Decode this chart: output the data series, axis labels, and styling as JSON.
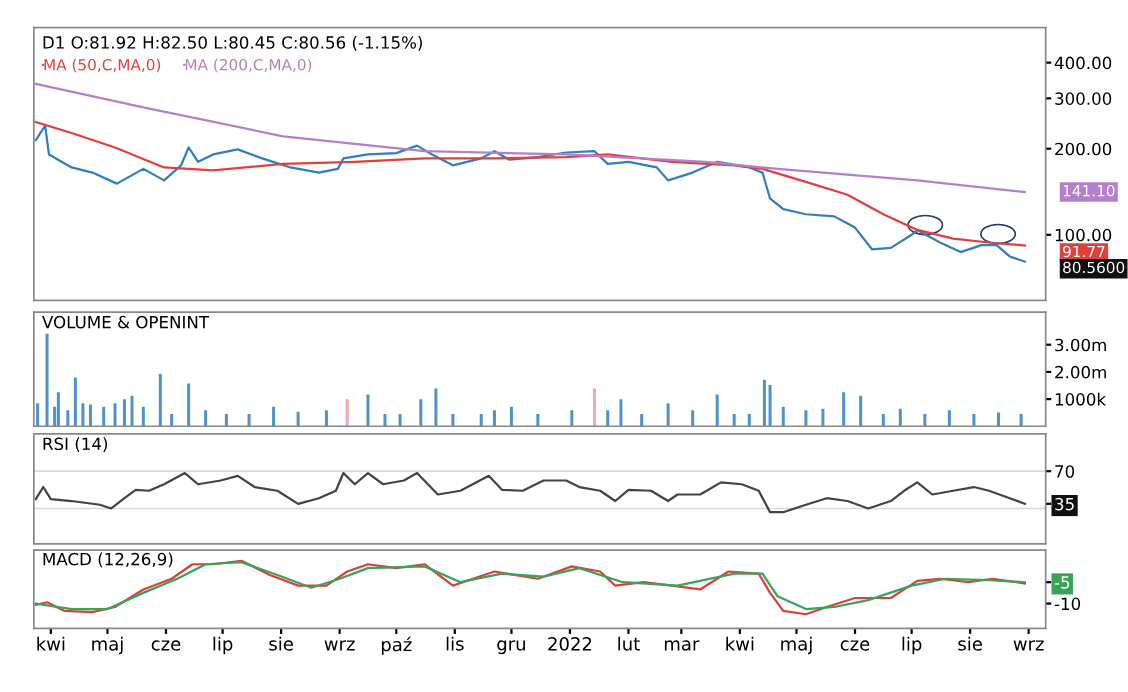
{
  "chart_data": [
    {
      "type": "line",
      "title": "D1 O:81.92 H:82.50 L:80.45 C:80.56 (-1.15%)",
      "log": "y",
      "legend": "top left",
      "tick_labels": "y",
      "xlim": [
        "2021-03-23",
        "2022-09-10"
      ],
      "ylim": [
        59,
        530
      ],
      "yticks": [
        {
          "value": 400,
          "label": "400.00"
        },
        {
          "value": 300,
          "label": "300.00"
        },
        {
          "value": 200,
          "label": "200.00"
        },
        {
          "value": 100,
          "label": "100.00"
        }
      ],
      "series": [
        {
          "color": "#2f7fc1",
          "x": [
            "2021-03-24",
            "2021-03-29",
            "2021-03-31",
            "2021-04-12",
            "2021-04-23",
            "2021-05-06",
            "2021-05-20",
            "2021-05-31",
            "2021-06-09",
            "2021-06-13",
            "2021-06-18",
            "2021-06-26",
            "2021-07-09",
            "2021-07-22",
            "2021-08-06",
            "2021-08-21",
            "2021-08-31",
            "2021-09-03",
            "2021-09-16",
            "2021-10-01",
            "2021-10-12",
            "2021-10-20",
            "2021-10-31",
            "2021-11-15",
            "2021-11-22",
            "2021-11-30",
            "2021-12-15",
            "2021-12-30",
            "2022-01-14",
            "2022-01-21",
            "2022-02-01",
            "2022-02-16",
            "2022-02-22",
            "2022-03-07",
            "2022-03-20",
            "2022-04-06",
            "2022-04-13",
            "2022-04-17",
            "2022-04-24",
            "2022-05-06",
            "2022-05-21",
            "2022-06-01",
            "2022-06-10",
            "2022-06-20",
            "2022-07-01",
            "2022-07-04",
            "2022-07-16",
            "2022-07-27",
            "2022-08-07",
            "2022-08-15",
            "2022-08-22",
            "2022-08-30"
          ],
          "values": [
            214,
            241,
            191,
            172,
            165,
            151,
            170,
            155,
            175,
            202,
            180,
            191,
            199,
            185,
            172,
            165,
            170,
            185,
            191,
            193,
            205,
            191,
            175,
            185,
            196,
            183,
            187,
            194,
            196,
            177,
            180,
            172,
            155,
            165,
            180,
            172,
            165,
            134,
            123,
            118,
            116,
            106,
            89,
            90,
            100,
            104,
            94,
            87,
            92,
            92,
            84,
            80.56
          ]
        },
        {
          "name": "MA (50,C,MA,0)",
          "color": "#e0413c",
          "x": [
            "2021-03-24",
            "2021-04-12",
            "2021-05-05",
            "2021-05-31",
            "2021-06-26",
            "2021-08-02",
            "2021-09-09",
            "2021-10-16",
            "2021-11-22",
            "2021-12-30",
            "2022-01-21",
            "2022-02-24",
            "2022-03-29",
            "2022-04-13",
            "2022-05-09",
            "2022-05-28",
            "2022-06-16",
            "2022-07-04",
            "2022-07-23",
            "2022-08-11",
            "2022-08-30"
          ],
          "values": [
            248,
            227,
            202,
            172,
            168,
            177,
            180,
            185,
            185,
            187,
            191,
            180,
            175,
            170,
            151,
            138,
            118,
            104,
            97,
            94,
            91.77
          ]
        },
        {
          "name": "MA (200,C,MA,0)",
          "color": "#b57fc9",
          "x": [
            "2021-03-24",
            "2021-05-20",
            "2021-08-02",
            "2021-10-16",
            "2021-12-30",
            "2022-03-14",
            "2022-04-21",
            "2022-07-04",
            "2022-08-30"
          ],
          "values": [
            337,
            279,
            221,
            196,
            191,
            180,
            170,
            155,
            141.1
          ]
        }
      ],
      "annotations": [
        {
          "text": "141.10",
          "x": "2022-08-30",
          "y": 141.1
        },
        {
          "text": "91.77",
          "x": "2022-08-30",
          "y": 91.77
        },
        {
          "text": "80.5600",
          "x": "2022-08-30",
          "y": 80.56
        }
      ]
    },
    {
      "type": "bar",
      "title": "VOLUME & OPENINT",
      "tick_labels": "y",
      "xlim": [
        "2021-03-23",
        "2022-09-10"
      ],
      "ylim": [
        0,
        4200000
      ],
      "yticks": [
        {
          "value": 3000000,
          "label": "3.00m"
        },
        {
          "value": 2000000,
          "label": "2.00m"
        },
        {
          "value": 1000000,
          "label": "1000k"
        }
      ],
      "x": [
        "2021-03-25",
        "2021-03-30",
        "2021-04-03",
        "2021-04-05",
        "2021-04-10",
        "2021-04-14",
        "2021-04-18",
        "2021-04-22",
        "2021-04-29",
        "2021-05-05",
        "2021-05-10",
        "2021-05-14",
        "2021-05-20",
        "2021-05-29",
        "2021-06-04",
        "2021-06-13",
        "2021-06-22",
        "2021-07-03",
        "2021-07-15",
        "2021-07-28",
        "2021-08-10",
        "2021-08-25",
        "2021-09-05",
        "2021-09-16",
        "2021-09-25",
        "2021-10-03",
        "2021-10-14",
        "2021-10-22",
        "2021-10-31",
        "2021-11-15",
        "2021-11-22",
        "2021-12-01",
        "2021-12-15",
        "2022-01-02",
        "2022-01-14",
        "2022-01-21",
        "2022-01-28",
        "2022-02-08",
        "2022-02-22",
        "2022-03-07",
        "2022-03-20",
        "2022-03-29",
        "2022-04-06",
        "2022-04-14",
        "2022-04-17",
        "2022-04-24",
        "2022-05-06",
        "2022-05-15",
        "2022-05-26",
        "2022-06-04",
        "2022-06-16",
        "2022-06-25",
        "2022-07-08",
        "2022-07-21",
        "2022-08-03",
        "2022-08-16",
        "2022-08-28"
      ],
      "values": [
        850000,
        3400000,
        720000,
        1250000,
        590000,
        1790000,
        850000,
        800000,
        720000,
        850000,
        990000,
        1120000,
        720000,
        1920000,
        450000,
        1570000,
        590000,
        450000,
        450000,
        720000,
        530000,
        590000,
        990000,
        1170000,
        450000,
        450000,
        990000,
        1390000,
        450000,
        450000,
        590000,
        720000,
        450000,
        590000,
        1390000,
        590000,
        990000,
        450000,
        850000,
        590000,
        1170000,
        450000,
        450000,
        1710000,
        1520000,
        720000,
        590000,
        640000,
        1250000,
        1120000,
        450000,
        640000,
        450000,
        590000,
        450000,
        510000,
        450000
      ],
      "colors": [
        "#4f93cc",
        "#4f93cc",
        "#4f93cc",
        "#4f93cc",
        "#4f93cc",
        "#4f93cc",
        "#4f93cc",
        "#4f93cc",
        "#4f93cc",
        "#4f93cc",
        "#4f93cc",
        "#4f93cc",
        "#4f93cc",
        "#4f93cc",
        "#4f93cc",
        "#4f93cc",
        "#4f93cc",
        "#4f93cc",
        "#4f93cc",
        "#4f93cc",
        "#4f93cc",
        "#4f93cc",
        "#f2a7b5",
        "#4f93cc",
        "#4f93cc",
        "#4f93cc",
        "#4f93cc",
        "#4f93cc",
        "#4f93cc",
        "#4f93cc",
        "#4f93cc",
        "#4f93cc",
        "#4f93cc",
        "#4f93cc",
        "#f2a7b5",
        "#4f93cc",
        "#4f93cc",
        "#4f93cc",
        "#4f93cc",
        "#4f93cc",
        "#4f93cc",
        "#4f93cc",
        "#4f93cc",
        "#4f93cc",
        "#4f93cc",
        "#4f93cc",
        "#4f93cc",
        "#4f93cc",
        "#4f93cc",
        "#4f93cc",
        "#4f93cc",
        "#4f93cc",
        "#4f93cc",
        "#4f93cc",
        "#4f93cc",
        "#4f93cc",
        "#4f93cc"
      ]
    },
    {
      "type": "line",
      "title": "RSI (14)",
      "tick_labels": "y",
      "xlim": [
        "2021-03-23",
        "2022-09-10"
      ],
      "ylim": [
        -8,
        110
      ],
      "yticks": [
        70,
        35
      ],
      "ref_lines": [
        {
          "axis": "y",
          "value": 70,
          "color": "#d8d8d8"
        },
        {
          "axis": "y",
          "value": 30,
          "color": "#d8d8d8"
        }
      ],
      "series": [
        {
          "color": "#444444",
          "x": [
            "2021-03-24",
            "2021-03-28",
            "2021-04-01",
            "2021-04-12",
            "2021-04-27",
            "2021-05-03",
            "2021-05-10",
            "2021-05-16",
            "2021-05-23",
            "2021-05-31",
            "2021-06-11",
            "2021-06-18",
            "2021-06-30",
            "2021-07-09",
            "2021-07-18",
            "2021-07-30",
            "2021-08-10",
            "2021-08-21",
            "2021-08-30",
            "2021-09-03",
            "2021-09-09",
            "2021-09-16",
            "2021-09-24",
            "2021-10-05",
            "2021-10-12",
            "2021-10-23",
            "2021-11-04",
            "2021-11-19",
            "2021-11-26",
            "2021-12-07",
            "2021-12-18",
            "2021-12-30",
            "2022-01-06",
            "2022-01-17",
            "2022-01-25",
            "2022-02-01",
            "2022-02-13",
            "2022-02-22",
            "2022-02-27",
            "2022-03-11",
            "2022-03-22",
            "2022-04-02",
            "2022-04-11",
            "2022-04-17",
            "2022-04-24",
            "2022-05-06",
            "2022-05-17",
            "2022-05-28",
            "2022-06-08",
            "2022-06-20",
            "2022-06-27",
            "2022-07-04",
            "2022-07-12",
            "2022-07-23",
            "2022-08-03",
            "2022-08-11",
            "2022-08-22",
            "2022-08-30"
          ],
          "values": [
            40,
            53,
            40,
            38,
            34,
            30,
            41,
            50,
            49,
            56,
            68,
            56,
            60,
            65,
            53,
            49,
            35,
            41,
            49,
            68,
            56,
            68,
            56,
            60,
            68,
            45,
            49,
            65,
            50,
            49,
            60,
            60,
            53,
            49,
            38,
            50,
            49,
            38,
            45,
            45,
            58,
            56,
            49,
            26,
            26,
            34,
            41,
            38,
            30,
            38,
            49,
            58,
            45,
            49,
            53,
            49,
            41,
            35
          ]
        }
      ],
      "legend": false
    },
    {
      "type": "line",
      "title": "MACD (12,26,9)",
      "xlim": [
        "2021-03-23",
        "2022-09-10"
      ],
      "ylim": [
        -15.8,
        2.5
      ],
      "yticks": [
        -5,
        -10
      ],
      "xticks": [
        {
          "value": "2021-04-01",
          "label": "kwi"
        },
        {
          "value": "2021-05-01",
          "label": "maj"
        },
        {
          "value": "2021-06-01",
          "label": "cze"
        },
        {
          "value": "2021-07-01",
          "label": "lip"
        },
        {
          "value": "2021-08-01",
          "label": "sie"
        },
        {
          "value": "2021-09-01",
          "label": "wrz"
        },
        {
          "value": "2021-10-01",
          "label": "paź"
        },
        {
          "value": "2021-11-01",
          "label": "lis"
        },
        {
          "value": "2021-12-01",
          "label": "gru"
        },
        {
          "value": "2022-01-01",
          "label": "2022"
        },
        {
          "value": "2022-02-01",
          "label": "lut"
        },
        {
          "value": "2022-03-01",
          "label": "mar"
        },
        {
          "value": "2022-04-01",
          "label": "kwi"
        },
        {
          "value": "2022-05-01",
          "label": "maj"
        },
        {
          "value": "2022-06-01",
          "label": "cze"
        },
        {
          "value": "2022-07-01",
          "label": "lip"
        },
        {
          "value": "2022-08-01",
          "label": "sie"
        },
        {
          "value": "2022-09-01",
          "label": "wrz"
        }
      ],
      "series": [
        {
          "color": "#d9413a",
          "x": [
            "2021-03-24",
            "2021-03-30",
            "2021-04-08",
            "2021-04-23",
            "2021-05-05",
            "2021-05-20",
            "2021-06-04",
            "2021-06-15",
            "2021-06-26",
            "2021-07-11",
            "2021-07-26",
            "2021-08-10",
            "2021-08-25",
            "2021-09-05",
            "2021-09-16",
            "2021-10-01",
            "2021-10-16",
            "2021-10-31",
            "2021-11-22",
            "2021-12-15",
            "2022-01-02",
            "2022-01-17",
            "2022-01-25",
            "2022-02-09",
            "2022-02-24",
            "2022-03-11",
            "2022-03-26",
            "2022-04-11",
            "2022-04-17",
            "2022-04-24",
            "2022-05-06",
            "2022-05-17",
            "2022-06-01",
            "2022-06-20",
            "2022-07-04",
            "2022-07-16",
            "2022-07-31",
            "2022-08-13",
            "2022-08-30"
          ],
          "values": [
            -10.3,
            -9.7,
            -11.7,
            -12,
            -10.8,
            -6.7,
            -4.2,
            -0.8,
            -0.8,
            0,
            -3.3,
            -5.8,
            -5.8,
            -2.5,
            -0.8,
            -1.7,
            -0.8,
            -5.8,
            -2.5,
            -4.2,
            -1.3,
            -2.5,
            -5.8,
            -5,
            -5.8,
            -6.7,
            -2.5,
            -3,
            -7.5,
            -11.7,
            -12.5,
            -10.8,
            -8.7,
            -8.7,
            -4.7,
            -4.2,
            -5,
            -4.2,
            -5.3
          ]
        },
        {
          "color": "#3aa35a",
          "x": [
            "2021-03-24",
            "2021-04-12",
            "2021-05-01",
            "2021-05-20",
            "2021-06-07",
            "2021-06-22",
            "2021-07-11",
            "2021-07-30",
            "2021-08-17",
            "2021-09-01",
            "2021-09-16",
            "2021-10-16",
            "2021-11-04",
            "2021-11-26",
            "2021-12-18",
            "2022-01-06",
            "2022-01-29",
            "2022-02-27",
            "2022-03-29",
            "2022-04-13",
            "2022-04-21",
            "2022-05-06",
            "2022-05-21",
            "2022-06-08",
            "2022-07-01",
            "2022-07-19",
            "2022-08-11",
            "2022-08-30"
          ],
          "values": [
            -10,
            -11.3,
            -11.3,
            -7.5,
            -4.2,
            -0.8,
            -0.3,
            -3.3,
            -6.3,
            -4.2,
            -1.7,
            -1.3,
            -5,
            -3,
            -3.7,
            -1.7,
            -5,
            -5.8,
            -3,
            -3,
            -8.3,
            -11.3,
            -10.8,
            -9.2,
            -5.8,
            -4.2,
            -4.5,
            -5
          ]
        }
      ],
      "legend": false
    }
  ]
}
